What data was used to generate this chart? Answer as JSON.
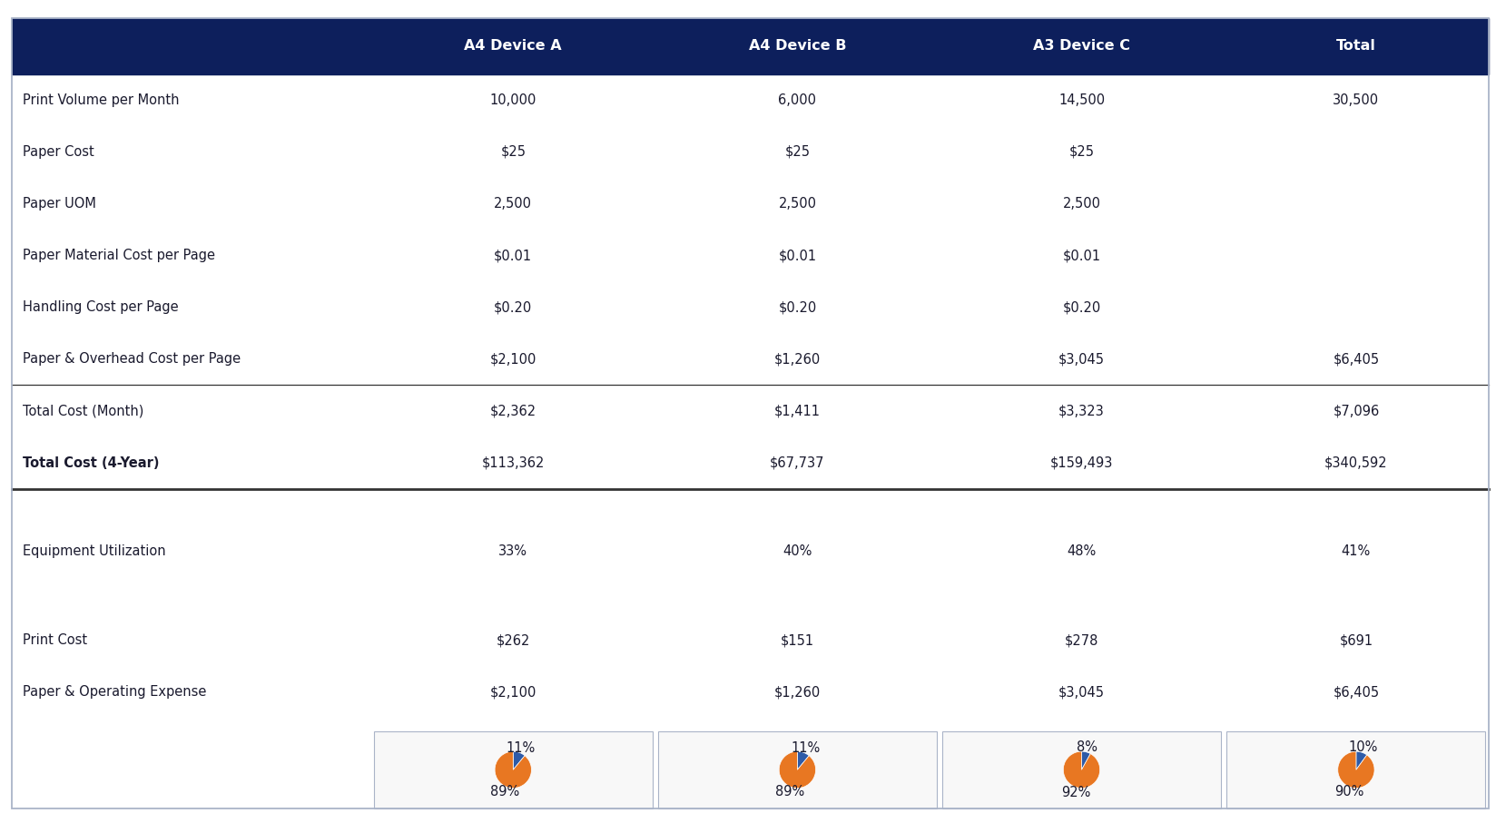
{
  "header_bg": "#0d1f5c",
  "header_text_color": "#ffffff",
  "body_bg": "#ffffff",
  "label_color": "#1a1a2e",
  "data_color": "#1a1a2e",
  "columns": [
    "",
    "A4 Device A",
    "A4 Device B",
    "A3 Device C",
    "Total"
  ],
  "rows": [
    [
      "Print Volume per Month",
      "10,000",
      "6,000",
      "14,500",
      "30,500"
    ],
    [
      "Paper Cost",
      "$25",
      "$25",
      "$25",
      ""
    ],
    [
      "Paper UOM",
      "2,500",
      "2,500",
      "2,500",
      ""
    ],
    [
      "Paper Material Cost per Page",
      "$0.01",
      "$0.01",
      "$0.01",
      ""
    ],
    [
      "Handling Cost per Page",
      "$0.20",
      "$0.20",
      "$0.20",
      ""
    ],
    [
      "Paper & Overhead Cost per Page",
      "$2,100",
      "$1,260",
      "$3,045",
      "$6,405"
    ],
    [
      "Total Cost (Month)",
      "$2,362",
      "$1,411",
      "$3,323",
      "$7,096"
    ],
    [
      "Total Cost (4-Year)",
      "$113,362",
      "$67,737",
      "$159,493",
      "$340,592"
    ]
  ],
  "eq_row": [
    "Equipment Utilization",
    "33%",
    "40%",
    "48%",
    "41%"
  ],
  "cost_rows": [
    [
      "Print Cost",
      "$262",
      "$151",
      "$278",
      "$691"
    ],
    [
      "Paper & Operating Expense",
      "$2,100",
      "$1,260",
      "$3,045",
      "$6,405"
    ]
  ],
  "pie_data": [
    {
      "blue": 11,
      "orange": 89
    },
    {
      "blue": 11,
      "orange": 89
    },
    {
      "blue": 8,
      "orange": 92
    },
    {
      "blue": 10,
      "orange": 90
    }
  ],
  "pie_blue_color": "#2e5ba8",
  "pie_orange_color": "#e87722",
  "border_color": "#aab4c8",
  "fig_width": 16.48,
  "fig_height": 9.07,
  "dpi": 100
}
